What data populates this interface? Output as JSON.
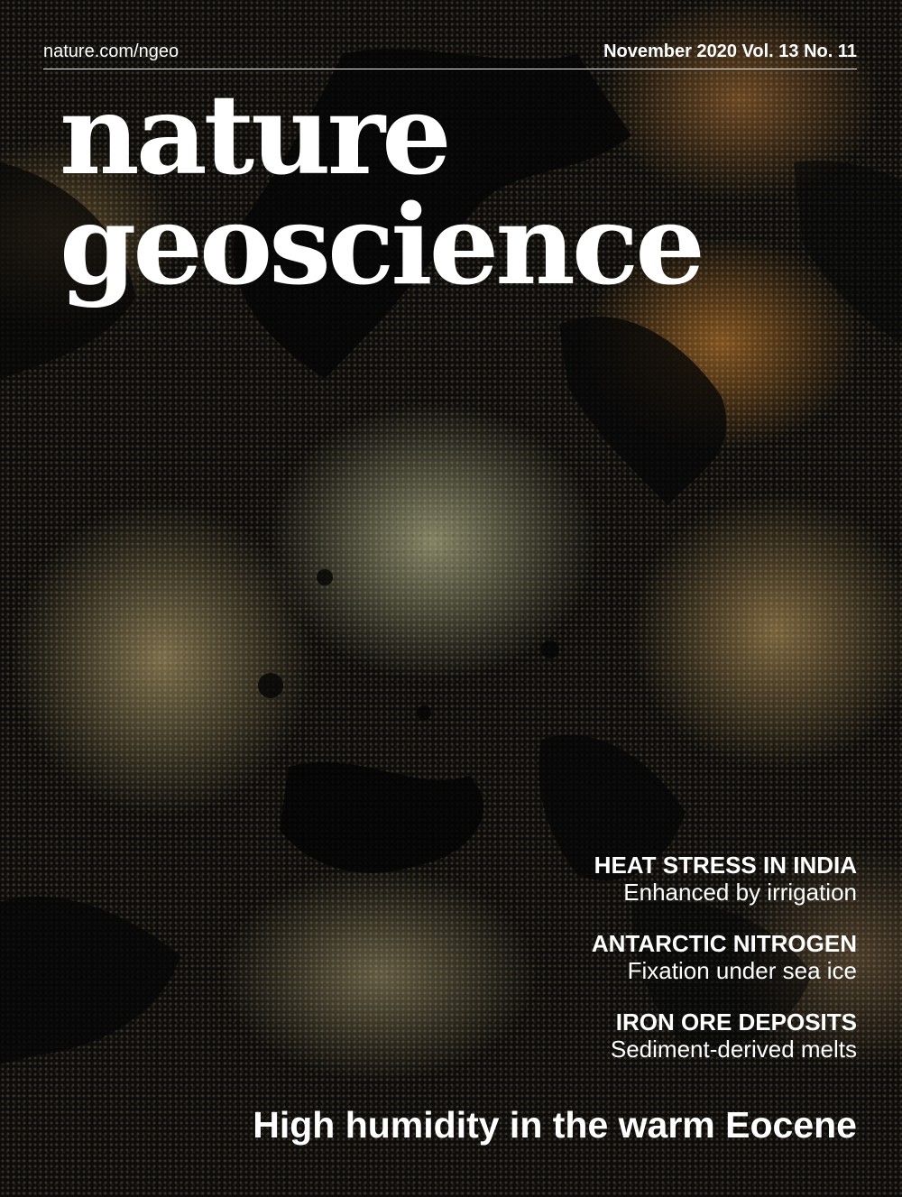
{
  "header": {
    "url": "nature.com/ngeo",
    "issue": "November 2020 Vol. 13 No. 11"
  },
  "masthead": {
    "line1": "nature",
    "line2": "geoscience"
  },
  "teasers": [
    {
      "headline": "HEAT STRESS IN INDIA",
      "subtitle": "Enhanced by irrigation"
    },
    {
      "headline": "ANTARCTIC NITROGEN",
      "subtitle": "Fixation under sea ice"
    },
    {
      "headline": "IRON ORE DEPOSITS",
      "subtitle": "Sediment-derived melts"
    }
  ],
  "cover_story": "High humidity in the warm Eocene",
  "colors": {
    "text": "#ffffff",
    "background": "#0d0c0a",
    "mineral_gold": "#8c6a2e",
    "mineral_grey": "#9a987a"
  }
}
